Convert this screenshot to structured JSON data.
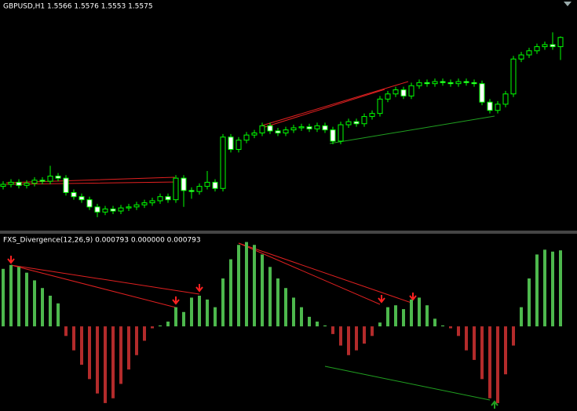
{
  "chart_data": [
    {
      "type": "candlestick",
      "title": "GBPUSD,H1  1.5566 1.5576 1.5553 1.5575",
      "color": "#00ff00",
      "ylim": [
        1.539,
        1.56
      ],
      "open": [
        1.543,
        1.5432,
        1.5434,
        1.5431,
        1.5433,
        1.5436,
        1.5435,
        1.544,
        1.5438,
        1.5424,
        1.542,
        1.5417,
        1.541,
        1.5405,
        1.5408,
        1.5406,
        1.5409,
        1.541,
        1.5412,
        1.5414,
        1.5416,
        1.542,
        1.5417,
        1.5438,
        1.5426,
        1.5425,
        1.543,
        1.5434,
        1.5428,
        1.5478,
        1.5466,
        1.5475,
        1.548,
        1.5482,
        1.5489,
        1.5484,
        1.5482,
        1.5485,
        1.5487,
        1.5488,
        1.5486,
        1.5489,
        1.5485,
        1.5474,
        1.549,
        1.5493,
        1.5491,
        1.5498,
        1.5501,
        1.5515,
        1.552,
        1.5524,
        1.5518,
        1.5528,
        1.5531,
        1.553,
        1.5532,
        1.5531,
        1.553,
        1.5532,
        1.5531,
        1.553,
        1.5512,
        1.5504,
        1.551,
        1.552,
        1.5554,
        1.5558,
        1.5562,
        1.5566,
        1.5568,
        1.5566
      ],
      "high": [
        1.5435,
        1.5437,
        1.5437,
        1.5436,
        1.5439,
        1.5439,
        1.545,
        1.5443,
        1.5441,
        1.5427,
        1.5423,
        1.542,
        1.5413,
        1.5411,
        1.5411,
        1.5412,
        1.5413,
        1.5415,
        1.5417,
        1.5419,
        1.5423,
        1.5423,
        1.5441,
        1.5441,
        1.5429,
        1.5433,
        1.5445,
        1.5437,
        1.5481,
        1.5481,
        1.5478,
        1.5483,
        1.5485,
        1.5492,
        1.5492,
        1.5487,
        1.5488,
        1.549,
        1.5491,
        1.5491,
        1.5492,
        1.5492,
        1.5488,
        1.5493,
        1.5496,
        1.5496,
        1.5501,
        1.5504,
        1.5518,
        1.5523,
        1.5527,
        1.5527,
        1.5531,
        1.5534,
        1.5534,
        1.5535,
        1.5535,
        1.5534,
        1.5535,
        1.5535,
        1.5534,
        1.5533,
        1.5515,
        1.5513,
        1.5523,
        1.5557,
        1.5561,
        1.5565,
        1.5569,
        1.5571,
        1.558,
        1.5576
      ],
      "low": [
        1.5427,
        1.5429,
        1.5428,
        1.5428,
        1.543,
        1.5432,
        1.5432,
        1.5435,
        1.5421,
        1.5417,
        1.5414,
        1.5407,
        1.54,
        1.5402,
        1.5403,
        1.5403,
        1.5406,
        1.5407,
        1.5409,
        1.5411,
        1.5413,
        1.5414,
        1.5414,
        1.541,
        1.5418,
        1.5422,
        1.5427,
        1.5425,
        1.5425,
        1.5463,
        1.5463,
        1.5472,
        1.5477,
        1.5479,
        1.5481,
        1.5479,
        1.5479,
        1.5482,
        1.5484,
        1.5483,
        1.5483,
        1.5482,
        1.5471,
        1.5471,
        1.5487,
        1.5488,
        1.5488,
        1.5495,
        1.5498,
        1.5512,
        1.5517,
        1.5515,
        1.5515,
        1.5525,
        1.5527,
        1.5527,
        1.5528,
        1.5527,
        1.5527,
        1.5528,
        1.5527,
        1.5509,
        1.5501,
        1.5501,
        1.5507,
        1.5517,
        1.5551,
        1.5555,
        1.5559,
        1.5563,
        1.5563,
        1.5553
      ],
      "close": [
        1.5432,
        1.5434,
        1.5431,
        1.5433,
        1.5436,
        1.5435,
        1.544,
        1.5438,
        1.5424,
        1.542,
        1.5417,
        1.541,
        1.5405,
        1.5408,
        1.5406,
        1.5409,
        1.541,
        1.5412,
        1.5414,
        1.5416,
        1.542,
        1.5417,
        1.5438,
        1.5426,
        1.5425,
        1.543,
        1.5434,
        1.5428,
        1.5478,
        1.5466,
        1.5475,
        1.548,
        1.5482,
        1.5489,
        1.5484,
        1.5482,
        1.5485,
        1.5487,
        1.5488,
        1.5486,
        1.5489,
        1.5485,
        1.5474,
        1.549,
        1.5493,
        1.5491,
        1.5498,
        1.5501,
        1.5515,
        1.552,
        1.5524,
        1.5518,
        1.5528,
        1.5531,
        1.553,
        1.5532,
        1.5531,
        1.553,
        1.5532,
        1.5531,
        1.553,
        1.5512,
        1.5504,
        1.551,
        1.552,
        1.5554,
        1.5558,
        1.5562,
        1.5566,
        1.5568,
        1.5566,
        1.5575
      ]
    },
    {
      "type": "histogram",
      "title": "FXS_Divergence(12,26,9) 0.000793 0.000000 0.000793",
      "colors": {
        "positive": "#4db84d",
        "negative": "#b32b2b"
      },
      "ylim": [
        -0.00085,
        0.00095
      ],
      "values": [
        0.0006,
        0.00064,
        0.00062,
        0.00056,
        0.00048,
        0.0004,
        0.00032,
        0.00024,
        -0.0001,
        -0.00025,
        -0.0004,
        -0.00055,
        -0.0007,
        -0.0008,
        -0.00075,
        -0.0006,
        -0.00045,
        -0.0003,
        -0.00015,
        -2e-05,
        1e-05,
        5e-05,
        0.0002,
        0.00015,
        0.0003,
        0.00032,
        0.00028,
        0.0002,
        0.0005,
        0.0007,
        0.00085,
        0.00088,
        0.00085,
        0.00075,
        0.00062,
        0.0005,
        0.0004,
        0.0003,
        0.0002,
        0.0001,
        5e-05,
        1e-05,
        -8e-05,
        -0.0002,
        -0.0003,
        -0.00025,
        -0.00018,
        -0.0001,
        4e-05,
        0.0002,
        0.00022,
        0.00018,
        0.00028,
        0.0003,
        0.00022,
        8e-05,
        1e-05,
        -2e-05,
        -0.0001,
        -0.00025,
        -0.00035,
        -0.00055,
        -0.00075,
        -0.0008,
        -0.0005,
        -0.0002,
        0.0002,
        0.0005,
        0.00075,
        0.0008,
        0.00078,
        0.000793
      ]
    }
  ]
}
